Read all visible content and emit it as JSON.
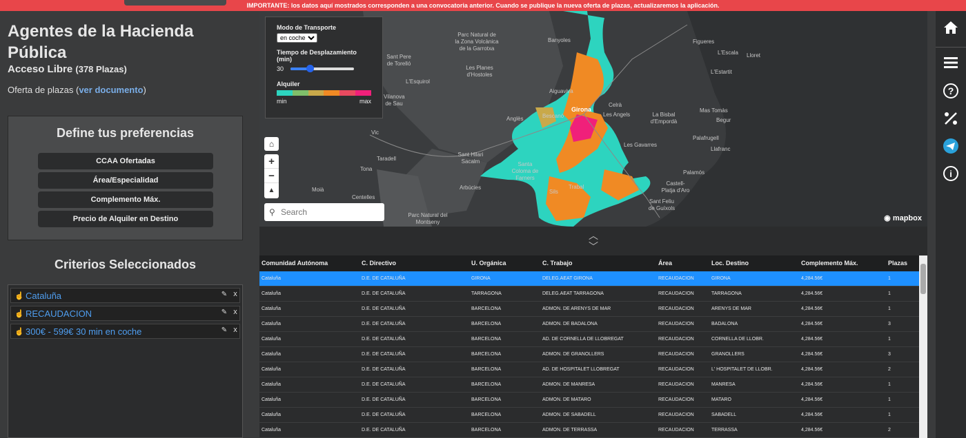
{
  "banner": {
    "text": "IMPORTANTE: los datos aquí mostrados corresponden a una convocatoria anterior. Cuando se publique la nueva oferta de plazas, actualizaremos la aplicación."
  },
  "header": {
    "title": "Agentes de la Hacienda Pública",
    "subtitle": "Acceso Libre",
    "count": "(378 Plazas)",
    "offer_prefix": "Oferta de plazas (",
    "offer_link": "ver documento",
    "offer_suffix": ")"
  },
  "preferences": {
    "title": "Define tus preferencias",
    "buttons": [
      "CCAA Ofertadas",
      "Área/Especialidad",
      "Complemento Máx.",
      "Precio de Alquiler en Destino"
    ]
  },
  "criteria": {
    "title": "Criterios Seleccionados",
    "items": [
      "Cataluña",
      "RECAUDACION",
      "300€ - 599€ 30 min en coche"
    ],
    "edit_icon": "pencil-icon",
    "remove_label": "x"
  },
  "map": {
    "legend": {
      "transport_label": "Modo de Transporte",
      "transport_value": "en coche",
      "time_label": "Tiempo de Desplazamiento (min)",
      "time_value": "30",
      "time_fraction": 0.3,
      "rent_label": "Alquiler",
      "ramp_colors": [
        "#2dd4bf",
        "#7fbf6a",
        "#c9a94a",
        "#f08a24",
        "#e84a5f",
        "#f0207a"
      ],
      "min_label": "min",
      "max_label": "max"
    },
    "search_placeholder": "Search",
    "attribution": "mapbox",
    "places": [
      "Parc Natural de la Zona Volcànica de la Garrotxa",
      "Banyoles",
      "Figueres",
      "Sant Pere de Torelló",
      "Les Planes d'Hostoles",
      "L'Esquirol",
      "Vilanova de Sau",
      "Vic",
      "Taradell",
      "Tona",
      "Moià",
      "Centelles",
      "Aiguaviva",
      "Girona",
      "Bescanó",
      "Anglès",
      "Sant Hilari Sacalm",
      "Santa Coloma de Farners",
      "Arbúcies",
      "Sils",
      "Parc Natural del Montseny",
      "Trabal",
      "Celrà",
      "Les Angels",
      "La Bisbal d'Empordà",
      "Les Gavarres",
      "L'Escala",
      "L'Estartit",
      "Mas Tomàs",
      "Begur",
      "Palafrugell",
      "Llafranc",
      "Palamós",
      "Castell-Platja d'Aro",
      "Sant Feliu de Guíxols",
      "Lloret"
    ]
  },
  "table": {
    "headers": [
      "Comunidad Autónoma",
      "C. Directivo",
      "U. Orgánica",
      "C. Trabajo",
      "Área",
      "Loc. Destino",
      "Complemento Máx.",
      "Plazas"
    ],
    "rows": [
      [
        "Cataluña",
        "D.E. DE CATALUÑA",
        "GIRONA",
        "DELEG.AEAT GIRONA",
        "RECAUDACION",
        "GIRONA",
        "4,284.56€",
        "1"
      ],
      [
        "Cataluña",
        "D.E. DE CATALUÑA",
        "TARRAGONA",
        "DELEG.AEAT TARRAGONA",
        "RECAUDACION",
        "TARRAGONA",
        "4,284.56€",
        "1"
      ],
      [
        "Cataluña",
        "D.E. DE CATALUÑA",
        "BARCELONA",
        "ADMON. DE ARENYS DE MAR",
        "RECAUDACION",
        "ARENYS DE MAR",
        "4,284.56€",
        "1"
      ],
      [
        "Cataluña",
        "D.E. DE CATALUÑA",
        "BARCELONA",
        "ADMON. DE BADALONA",
        "RECAUDACION",
        "BADALONA",
        "4,284.56€",
        "3"
      ],
      [
        "Cataluña",
        "D.E. DE CATALUÑA",
        "BARCELONA",
        "AD. DE CORNELLA DE LLOBREGAT",
        "RECAUDACION",
        "CORNELLA DE LLOBR.",
        "4,284.56€",
        "1"
      ],
      [
        "Cataluña",
        "D.E. DE CATALUÑA",
        "BARCELONA",
        "ADMON. DE GRANOLLERS",
        "RECAUDACION",
        "GRANOLLERS",
        "4,284.56€",
        "3"
      ],
      [
        "Cataluña",
        "D.E. DE CATALUÑA",
        "BARCELONA",
        "AD. DE HOSPITALET LLOBREGAT",
        "RECAUDACION",
        "L' HOSPITALET DE LLOBR.",
        "4,284.56€",
        "2"
      ],
      [
        "Cataluña",
        "D.E. DE CATALUÑA",
        "BARCELONA",
        "ADMON. DE MANRESA",
        "RECAUDACION",
        "MANRESA",
        "4,284.56€",
        "1"
      ],
      [
        "Cataluña",
        "D.E. DE CATALUÑA",
        "BARCELONA",
        "ADMON. DE MATARO",
        "RECAUDACION",
        "MATARO",
        "4,284.56€",
        "1"
      ],
      [
        "Cataluña",
        "D.E. DE CATALUÑA",
        "BARCELONA",
        "ADMON. DE SABADELL",
        "RECAUDACION",
        "SABADELL",
        "4,284.56€",
        "1"
      ],
      [
        "Cataluña",
        "D.E. DE CATALUÑA",
        "BARCELONA",
        "ADMON. DE TERRASSA",
        "RECAUDACION",
        "TERRASSA",
        "4,284.56€",
        "2"
      ]
    ]
  },
  "nav": {
    "icons": [
      "home-icon",
      "menu-icon",
      "help-icon",
      "percent-icon",
      "telegram-icon",
      "info-icon"
    ]
  }
}
